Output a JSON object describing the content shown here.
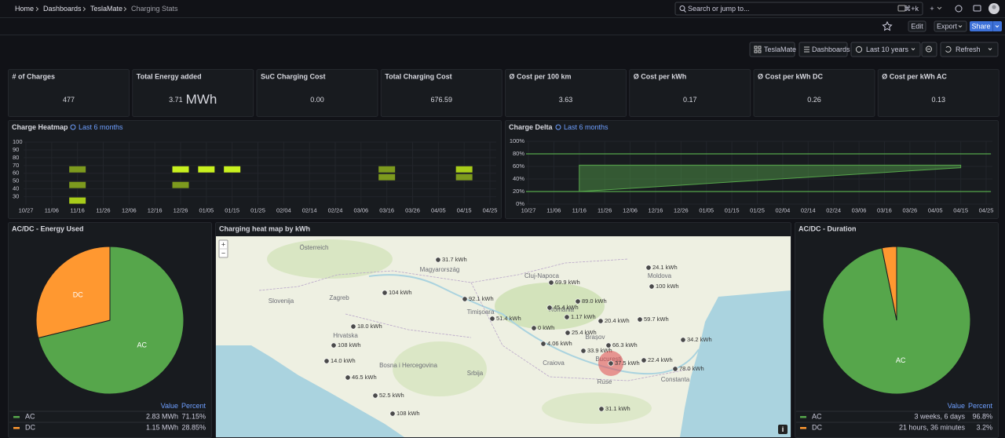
{
  "nav": {
    "breadcrumbs": [
      "Home",
      "Dashboards",
      "TeslaMate",
      "Charging Stats"
    ],
    "search": "Search or jump to...",
    "shortcut": "⌘+k"
  },
  "toolbar": {
    "edit": "Edit",
    "export": "Export",
    "share": "Share"
  },
  "controls": {
    "dashboard": "TeslaMate",
    "dashboards": "Dashboards",
    "time_range": "Last 10 years",
    "refresh": "Refresh"
  },
  "stats": [
    {
      "title": "# of Charges",
      "value": "477"
    },
    {
      "title": "Total Energy added",
      "value": "3.71",
      "unit": "MWh"
    },
    {
      "title": "SuC Charging Cost",
      "value": "0.00"
    },
    {
      "title": "Total Charging Cost",
      "value": "676.59"
    },
    {
      "title": "Ø Cost per 100 km",
      "value": "3.63"
    },
    {
      "title": "Ø Cost per kWh",
      "value": "0.17"
    },
    {
      "title": "Ø Cost per kWh DC",
      "value": "0.26"
    },
    {
      "title": "Ø Cost per kWh AC",
      "value": "0.13"
    }
  ],
  "heatmap": {
    "title": "Charge Heatmap",
    "time": "Last 6 months",
    "ylim": [
      20,
      100
    ],
    "yticks": [
      100,
      90,
      80,
      70,
      60,
      50,
      40,
      30
    ],
    "xticks": [
      "10/27",
      "11/06",
      "11/16",
      "11/26",
      "12/06",
      "12/16",
      "12/26",
      "01/05",
      "01/15",
      "01/25",
      "02/04",
      "02/14",
      "02/24",
      "03/06",
      "03/16",
      "03/26",
      "04/05",
      "04/15",
      "04/25"
    ],
    "cells": [
      {
        "x": "11/16",
        "y": 70,
        "color": "#7d9a1e"
      },
      {
        "x": "11/16",
        "y": 50,
        "color": "#7d9a1e"
      },
      {
        "x": "11/16",
        "y": 30,
        "color": "#a8cc1a"
      },
      {
        "x": "12/26",
        "y": 70,
        "color": "#c8f01f"
      },
      {
        "x": "12/26",
        "y": 50,
        "color": "#7d9a1e"
      },
      {
        "x": "01/05",
        "y": 70,
        "color": "#c8f01f"
      },
      {
        "x": "01/15",
        "y": 70,
        "color": "#c8f01f"
      },
      {
        "x": "03/16",
        "y": 70,
        "color": "#7d9a1e"
      },
      {
        "x": "03/16",
        "y": 60,
        "color": "#7d9a1e"
      },
      {
        "x": "04/15",
        "y": 70,
        "color": "#a8cc1a"
      },
      {
        "x": "04/15",
        "y": 60,
        "color": "#7d9a1e"
      }
    ]
  },
  "delta": {
    "title": "Charge Delta",
    "time": "Last 6 months",
    "ylim": [
      0,
      100
    ],
    "yticks": [
      {
        "value": 100,
        "label": "100%"
      },
      {
        "value": 80,
        "label": "80%"
      },
      {
        "value": 60,
        "label": "60%"
      },
      {
        "value": 40,
        "label": "40%"
      },
      {
        "value": 20,
        "label": "20%"
      },
      {
        "value": 0,
        "label": "0%"
      }
    ],
    "xticks": [
      "10/27",
      "11/06",
      "11/16",
      "11/26",
      "12/06",
      "12/16",
      "12/26",
      "01/05",
      "01/15",
      "01/25",
      "02/04",
      "02/14",
      "02/24",
      "03/06",
      "03/16",
      "03/26",
      "04/05",
      "04/15",
      "04/25"
    ],
    "lines": [
      80,
      20
    ],
    "color": "#56a64b",
    "band": {
      "x": [
        "11/16",
        "04/15"
      ],
      "upper": [
        62,
        62
      ],
      "lower": [
        20,
        58
      ]
    }
  },
  "energy": {
    "title": "AC/DC - Energy Used",
    "columns": [
      "Value",
      "Percent"
    ],
    "slices": [
      {
        "name": "AC",
        "color": "#56a64b",
        "value": 71.15,
        "value_label": "71.15%",
        "amount": "2.83 MWh"
      },
      {
        "name": "DC",
        "color": "#ff9830",
        "value": 28.85,
        "value_label": "28.85%",
        "amount": "1.15 MWh"
      }
    ]
  },
  "duration": {
    "title": "AC/DC - Duration",
    "columns": [
      "Value",
      "Percent"
    ],
    "slices": [
      {
        "name": "AC",
        "color": "#56a64b",
        "value": 96.8,
        "value_label": "96.8%",
        "amount": "3 weeks, 6 days"
      },
      {
        "name": "DC",
        "color": "#ff9830",
        "value": 3.2,
        "value_label": "3.2%",
        "amount": "21 hours, 36 minutes"
      }
    ]
  },
  "map": {
    "title": "Charging heat map by kWh",
    "zoom_in": "+",
    "zoom_out": "−",
    "info": "i",
    "places": [
      "Österreich",
      "Magyarország",
      "Slovenija",
      "Zagreb",
      "Hrvatska",
      "Bosna i Hercegovina",
      "Srbija",
      "Cluj-Napoca",
      "Timișoara",
      "România",
      "Moldova",
      "Brașov",
      "Craiova",
      "București",
      "Constanta",
      "Ruse"
    ],
    "markers": [
      {
        "value": 31.7,
        "label": "31.7 kWh"
      },
      {
        "value": 24.1,
        "label": "24.1 kWh"
      },
      {
        "value": 69.9,
        "label": "69.9 kWh"
      },
      {
        "value": 100,
        "label": "100 kWh"
      },
      {
        "value": 104,
        "label": "104 kWh"
      },
      {
        "value": 92.1,
        "label": "92.1 kWh"
      },
      {
        "value": 89.0,
        "label": "89.0 kWh"
      },
      {
        "value": 45.4,
        "label": "45.4 kWh"
      },
      {
        "value": 18.0,
        "label": "18.0 kWh"
      },
      {
        "value": 51.4,
        "label": "51.4 kWh"
      },
      {
        "value": 1.17,
        "label": "1.17 kWh"
      },
      {
        "value": 20.4,
        "label": "20.4 kWh"
      },
      {
        "value": 59.7,
        "label": "59.7 kWh"
      },
      {
        "value": 0,
        "label": "0 kWh"
      },
      {
        "value": 25.4,
        "label": "25.4 kWh"
      },
      {
        "value": 4.06,
        "label": "4.06 kWh"
      },
      {
        "value": 108,
        "label": "108 kWh"
      },
      {
        "value": 66.3,
        "label": "66.3 kWh"
      },
      {
        "value": 34.2,
        "label": "34.2 kWh"
      },
      {
        "value": 33.9,
        "label": "33.9 kWh"
      },
      {
        "value": 37.5,
        "label": "37.5 kWh"
      },
      {
        "value": 22.4,
        "label": "22.4 kWh"
      },
      {
        "value": 14.0,
        "label": "14.0 kWh"
      },
      {
        "value": 78.0,
        "label": "78.0 kWh"
      },
      {
        "value": 46.5,
        "label": "46.5 kWh"
      },
      {
        "value": 52.5,
        "label": "52.5 kWh"
      },
      {
        "value": 108,
        "label": "108 kWh"
      },
      {
        "value": 31.1,
        "label": "31.1 kWh"
      }
    ]
  }
}
